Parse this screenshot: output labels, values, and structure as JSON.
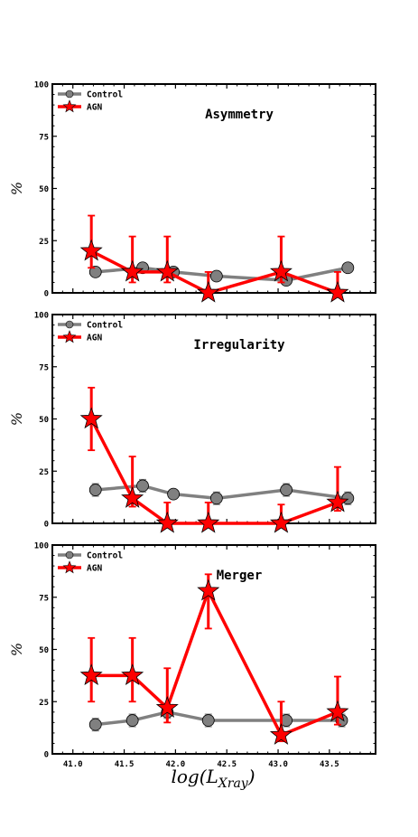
{
  "figure": {
    "ylabel": "%",
    "xlabel_main": "log(L",
    "xlabel_sub": "Xray",
    "xlabel_close": ")"
  },
  "colors": {
    "control": "#808080",
    "control_marker": "#808080",
    "agn": "#ff0000",
    "agn_marker": "#ff0000",
    "axes": "#000000"
  },
  "chart_data": [
    {
      "type": "line",
      "title": "Asymmetry",
      "ylabel": "%",
      "xlim": [
        40.8,
        43.95
      ],
      "ylim": [
        0,
        100
      ],
      "yticks": [
        0,
        25,
        50,
        75,
        100
      ],
      "xticks": [
        41.0,
        41.5,
        42.0,
        42.5,
        43.0,
        43.5
      ],
      "legend": "top-left",
      "series": [
        {
          "name": "Control",
          "marker": "circle",
          "x": [
            41.22,
            41.68,
            41.98,
            42.4,
            43.08,
            43.68
          ],
          "y": [
            10,
            12,
            10,
            8,
            6,
            12
          ],
          "err_low": [
            2,
            2,
            2,
            2,
            2,
            2
          ],
          "err_high": [
            2,
            2,
            2,
            2,
            2,
            2
          ]
        },
        {
          "name": "AGN",
          "marker": "star",
          "x": [
            41.18,
            41.58,
            41.92,
            42.32,
            43.03,
            43.58
          ],
          "y": [
            20,
            10,
            10,
            0,
            10,
            0
          ],
          "err_low": [
            8,
            5,
            5,
            0,
            5,
            0
          ],
          "err_high": [
            17,
            17,
            17,
            10,
            17,
            10
          ]
        }
      ]
    },
    {
      "type": "line",
      "title": "Irregularity",
      "ylabel": "%",
      "xlim": [
        40.8,
        43.95
      ],
      "ylim": [
        0,
        100
      ],
      "yticks": [
        0,
        25,
        50,
        75,
        100
      ],
      "xticks": [
        41.0,
        41.5,
        42.0,
        42.5,
        43.0,
        43.5
      ],
      "legend": "top-left",
      "series": [
        {
          "name": "Control",
          "marker": "circle",
          "x": [
            41.22,
            41.68,
            41.98,
            42.4,
            43.08,
            43.68
          ],
          "y": [
            16,
            18,
            14,
            12,
            16,
            12
          ],
          "err_low": [
            3,
            3,
            2,
            3,
            3,
            3
          ],
          "err_high": [
            3,
            3,
            2,
            3,
            3,
            3
          ]
        },
        {
          "name": "AGN",
          "marker": "star",
          "x": [
            41.18,
            41.58,
            41.92,
            42.32,
            43.03,
            43.58
          ],
          "y": [
            50,
            12,
            0,
            0,
            0,
            10
          ],
          "err_low": [
            15,
            4,
            0,
            0,
            0,
            4
          ],
          "err_high": [
            15,
            20,
            10,
            10,
            9,
            17
          ]
        }
      ]
    },
    {
      "type": "line",
      "title": "Merger",
      "ylabel": "%",
      "xlim": [
        40.8,
        43.95
      ],
      "ylim": [
        0,
        100
      ],
      "yticks": [
        0,
        25,
        50,
        75,
        100
      ],
      "xticks": [
        41.0,
        41.5,
        42.0,
        42.5,
        43.0,
        43.5
      ],
      "xlabel": "log(L_Xray)",
      "legend": "top-left",
      "series": [
        {
          "name": "Control",
          "marker": "circle",
          "x": [
            41.22,
            41.58,
            41.92,
            42.32,
            43.08,
            43.62
          ],
          "y": [
            14,
            16,
            20,
            16,
            16,
            16
          ],
          "err_low": [
            3,
            3,
            3,
            3,
            3,
            3
          ],
          "err_high": [
            3,
            3,
            3,
            3,
            3,
            3
          ]
        },
        {
          "name": "AGN",
          "marker": "star",
          "x": [
            41.18,
            41.58,
            41.92,
            42.32,
            43.03,
            43.58
          ],
          "y": [
            37.5,
            37.5,
            22,
            78,
            9,
            20
          ],
          "err_low": [
            12.5,
            12.5,
            7,
            18,
            3,
            6
          ],
          "err_high": [
            18,
            18,
            19,
            8,
            16,
            17
          ]
        }
      ]
    }
  ]
}
